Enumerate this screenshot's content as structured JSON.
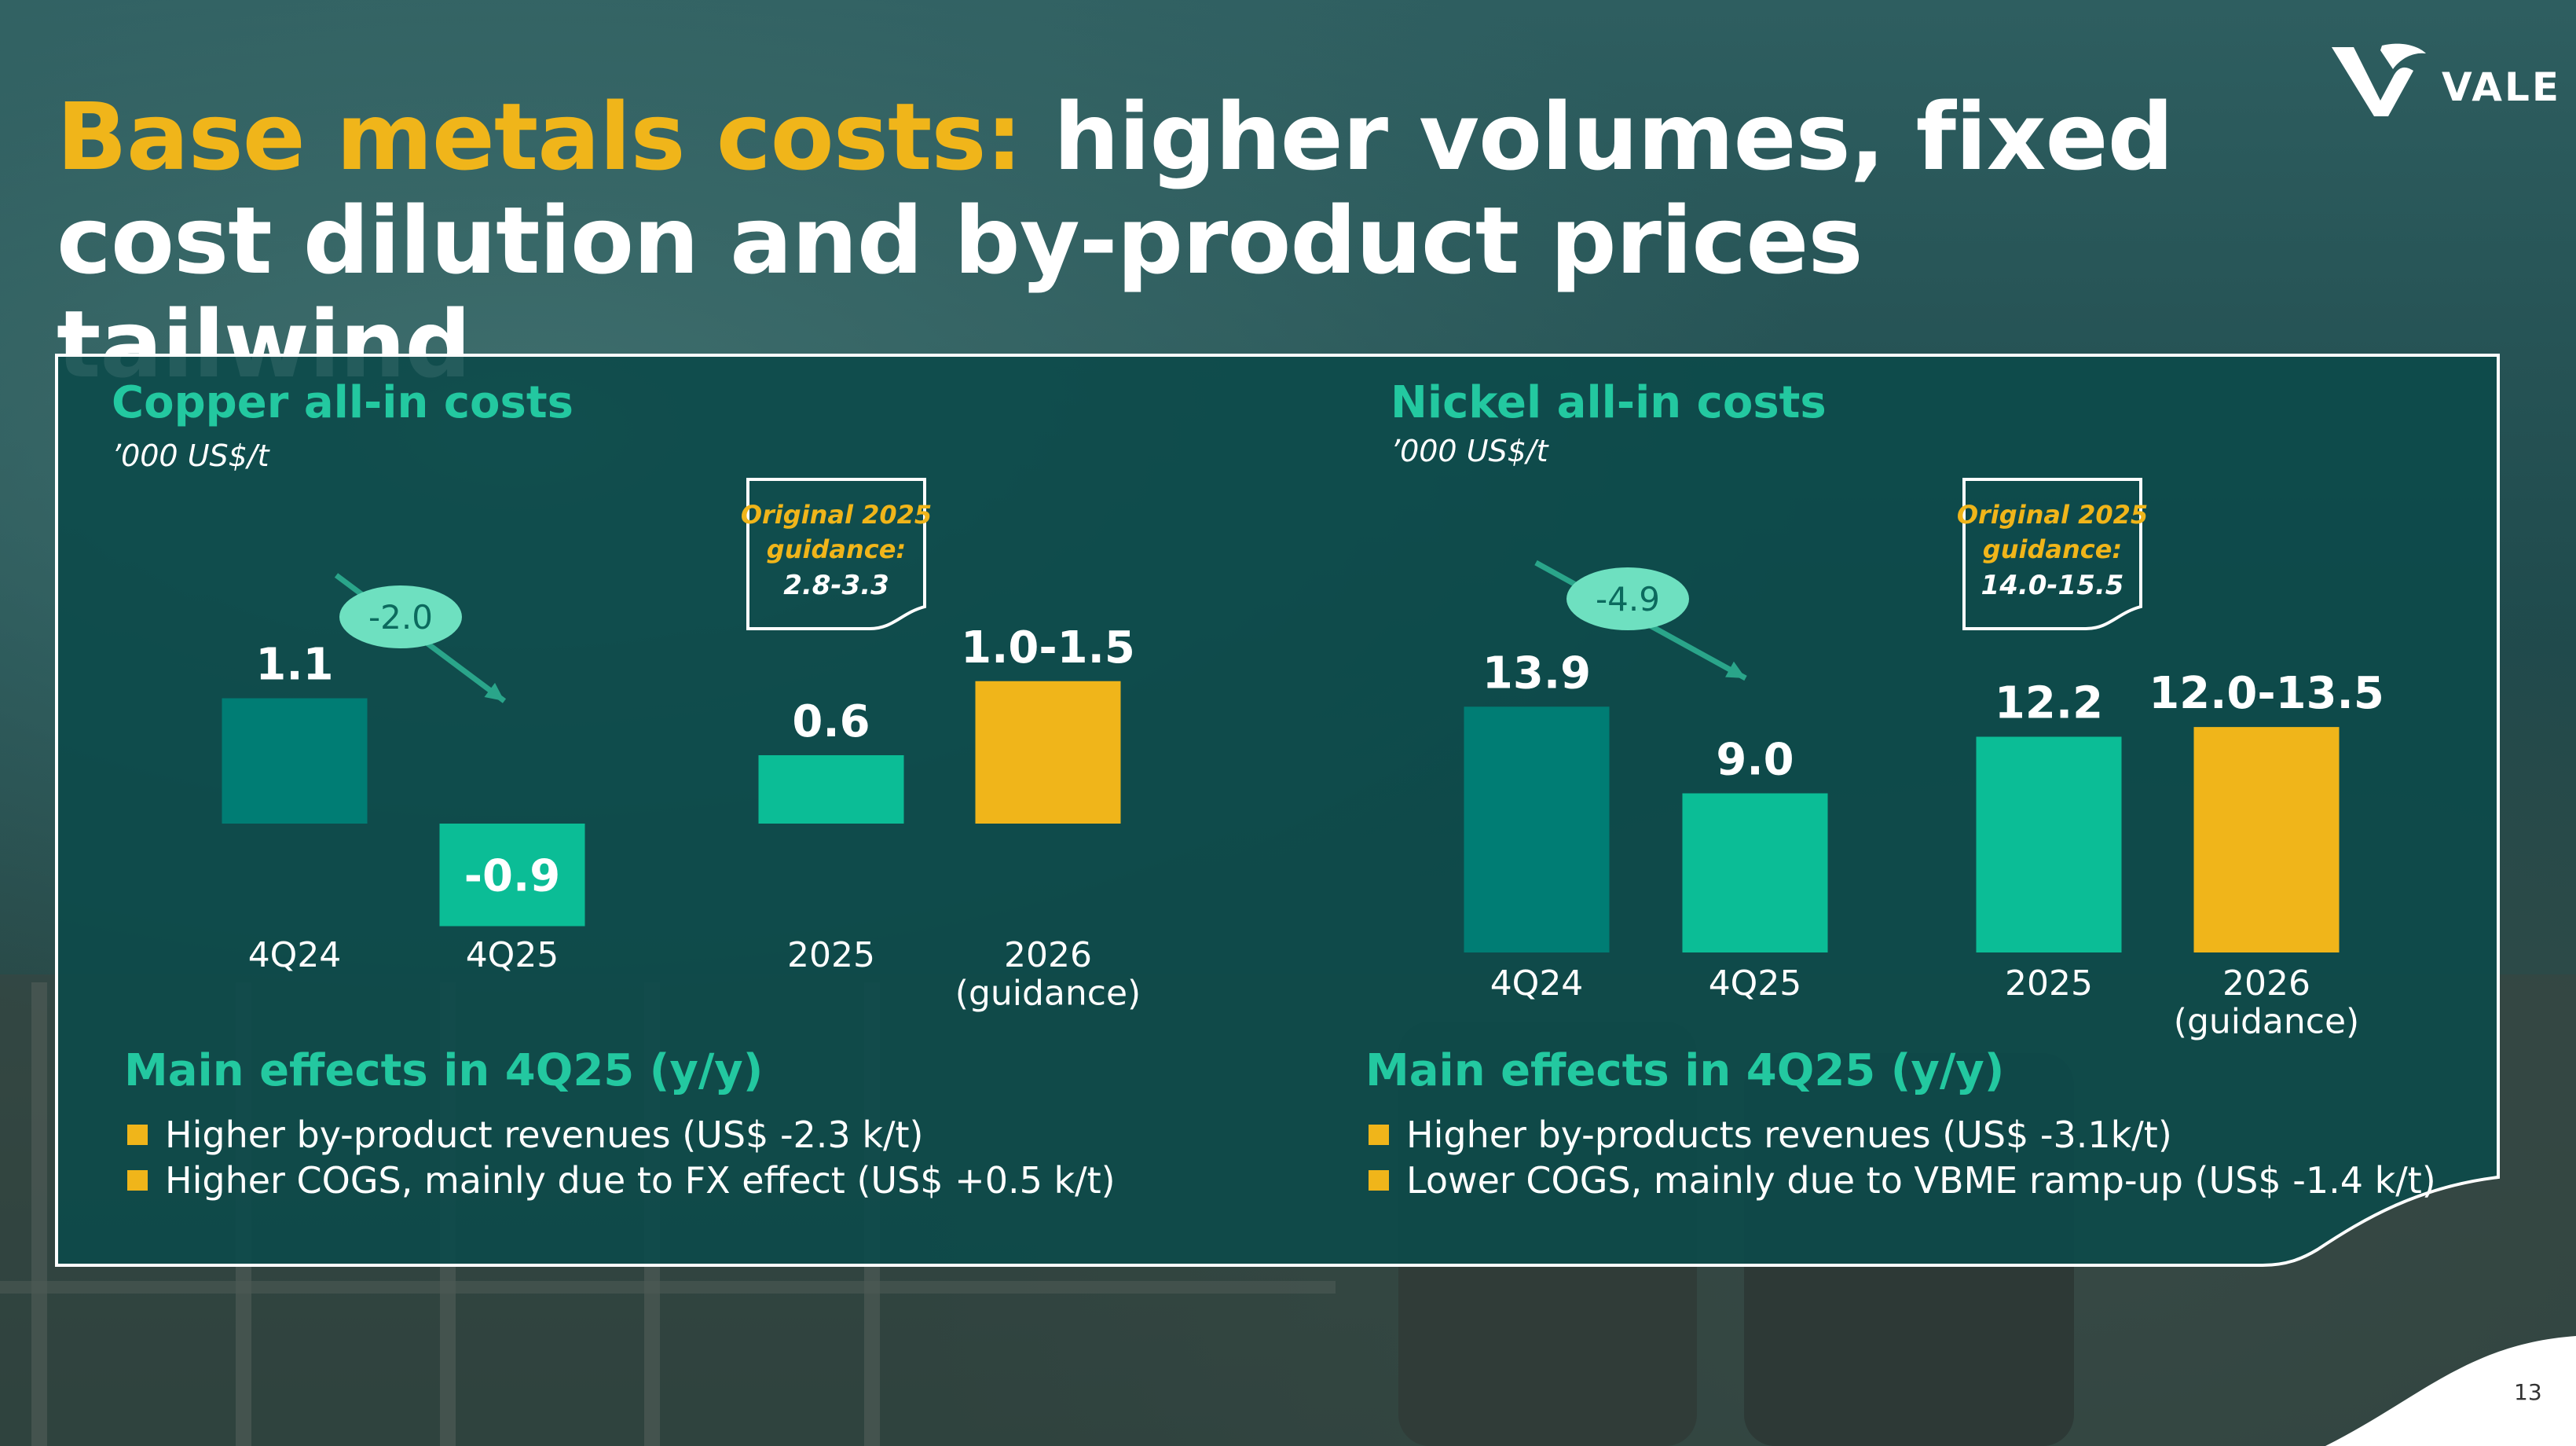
{
  "slide": {
    "title_highlight": "Base metals costs:",
    "title_rest": " higher volumes, fixed cost dilution and by-product prices tailwind",
    "logo_text": "VALE",
    "page_number": "13"
  },
  "colors": {
    "accent_yellow": "#f0b51a",
    "teal_dark": "#007d74",
    "teal_light": "#0bbd96",
    "heading_teal": "#23c8a0",
    "panel": "#0c4a4a",
    "bubble": "#6ee0c0"
  },
  "copper": {
    "title": "Copper all-in costs",
    "unit": "’000 US$/t",
    "guidance_box": {
      "line1": "Original 2025",
      "line2": "guidance:",
      "value": "2.8-3.3"
    },
    "change_label": "-2.0",
    "effects_title": "Main effects in 4Q25 (y/y)",
    "effects": [
      "Higher by-product revenues (US$ -2.3 k/t)",
      "Higher COGS, mainly due to FX effect (US$ +0.5 k/t)"
    ]
  },
  "nickel": {
    "title": "Nickel all-in costs",
    "unit": "’000 US$/t",
    "guidance_box": {
      "line1": "Original 2025",
      "line2": "guidance:",
      "value": "14.0-15.5"
    },
    "change_label": "-4.9",
    "effects_title": "Main effects in 4Q25 (y/y)",
    "effects": [
      "Higher by-products revenues (US$ -3.1k/t)",
      "Lower COGS, mainly due to VBME ramp-up (US$ -1.4 k/t)"
    ]
  },
  "chart_data": [
    {
      "type": "bar",
      "title": "Copper all-in costs",
      "ylabel": "’000 US$/t",
      "categories": [
        "4Q24",
        "4Q25",
        "2025",
        "2026\n(guidance)"
      ],
      "values": [
        1.1,
        -0.9,
        0.6,
        1.25
      ],
      "labels": [
        "1.1",
        "-0.9",
        "0.6",
        "1.0-1.5"
      ],
      "colors": [
        "#007d74",
        "#0bbd96",
        "#0bbd96",
        "#f0b51a"
      ],
      "annotation": "-2.0",
      "guidance_2025": "2.8-3.3"
    },
    {
      "type": "bar",
      "title": "Nickel all-in costs",
      "ylabel": "’000 US$/t",
      "categories": [
        "4Q24",
        "4Q25",
        "2025",
        "2026\n(guidance)"
      ],
      "values": [
        13.9,
        9.0,
        12.2,
        12.75
      ],
      "labels": [
        "13.9",
        "9.0",
        "12.2",
        "12.0-13.5"
      ],
      "colors": [
        "#007d74",
        "#0bbd96",
        "#0bbd96",
        "#f0b51a"
      ],
      "annotation": "-4.9",
      "guidance_2025": "14.0-15.5"
    }
  ]
}
